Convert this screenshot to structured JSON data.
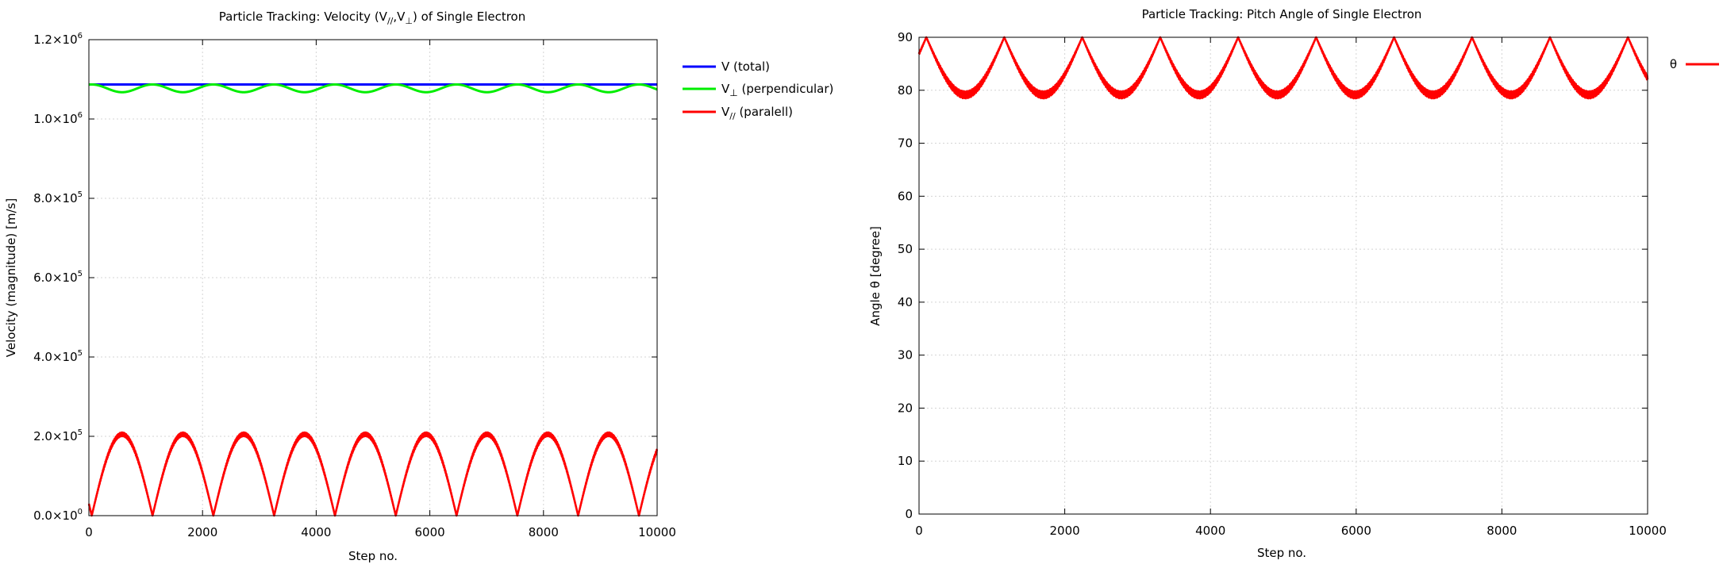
{
  "figure": {
    "background": "#ffffff"
  },
  "chart_data": [
    {
      "type": "line",
      "title": "Particle Tracking: Velocity (V//,V⊥) of Single Electron",
      "title_parts": {
        "before": "Particle Tracking: Velocity (V",
        "sub1": "//",
        "middle": ",V",
        "sub2": "⊥",
        "after": ") of Single Electron"
      },
      "xlabel": "Step no.",
      "ylabel": "Velocity (magnitude) [m/s]",
      "xlim": [
        0,
        10000
      ],
      "ylim": [
        0,
        1200000
      ],
      "grid": true,
      "legend_position": "outside-right",
      "x_ticks": [
        0,
        2000,
        4000,
        6000,
        8000,
        10000
      ],
      "y_ticks": [
        {
          "value": 0,
          "mantissa": "0.0×10",
          "exp": "0"
        },
        {
          "value": 200000,
          "mantissa": "2.0×10",
          "exp": "5"
        },
        {
          "value": 400000,
          "mantissa": "4.0×10",
          "exp": "5"
        },
        {
          "value": 600000,
          "mantissa": "6.0×10",
          "exp": "5"
        },
        {
          "value": 800000,
          "mantissa": "8.0×10",
          "exp": "5"
        },
        {
          "value": 1000000,
          "mantissa": "1.0×10",
          "exp": "6"
        },
        {
          "value": 1200000,
          "mantissa": "1.2×10",
          "exp": "6"
        }
      ],
      "series": [
        {
          "name": "V (total)",
          "label_main": "V",
          "label_sub": "",
          "label_rest": " (total)",
          "color": "#0000ff",
          "kind": "constant",
          "value": 1087000
        },
        {
          "name": "V⊥ (perpendicular)",
          "label_main": "V",
          "label_sub": "⊥",
          "label_rest": " (perpendicular)",
          "color": "#00ee00",
          "kind": "perp",
          "v_total": 1087000,
          "v_par_max": 205000,
          "period": 1070,
          "phase_x": 50
        },
        {
          "name": "V// (paralell)",
          "label_main": "V",
          "label_sub": "//",
          "label_rest": " (paralell)",
          "color": "#ff0000",
          "kind": "parallel",
          "amplitude": 205000,
          "period": 1070,
          "phase_x": 50,
          "ripple": 5000
        }
      ]
    },
    {
      "type": "line",
      "title": "Particle Tracking: Pitch Angle of Single Electron",
      "xlabel": "Step no.",
      "ylabel": "Angle θ [degree]",
      "xlim": [
        0,
        10000
      ],
      "ylim": [
        0,
        90
      ],
      "grid": true,
      "legend_position": "outside-right",
      "x_ticks": [
        0,
        2000,
        4000,
        6000,
        8000,
        10000
      ],
      "y_ticks": [
        0,
        10,
        20,
        30,
        40,
        50,
        60,
        70,
        80,
        90
      ],
      "series": [
        {
          "name": "θ",
          "color": "#ff0000",
          "kind": "pitch",
          "v_total": 1087000,
          "v_par_max": 205000,
          "period": 1070,
          "phase_x": 100,
          "ripple": 0.7
        }
      ]
    }
  ]
}
